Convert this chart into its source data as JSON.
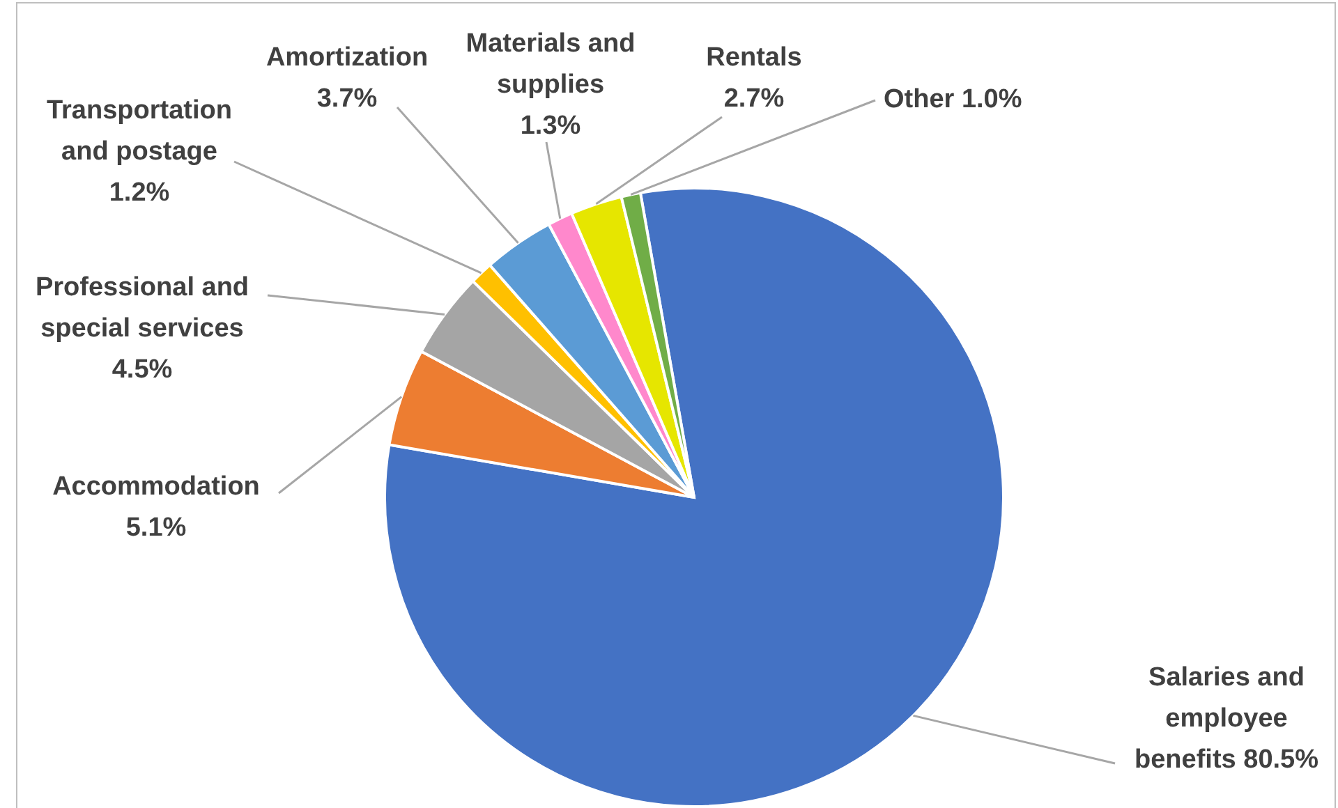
{
  "chart_data": {
    "type": "pie",
    "categories": [
      "Salaries and employee benefits",
      "Accommodation",
      "Professional and special services",
      "Transportation and postage",
      "Amortization",
      "Materials and supplies",
      "Rentals",
      "Other"
    ],
    "values": [
      80.5,
      5.1,
      4.5,
      1.2,
      3.7,
      1.3,
      2.7,
      1.0
    ],
    "value_labels": [
      "80.5%",
      "5.1%",
      "4.5%",
      "1.2%",
      "3.7%",
      "1.3%",
      "2.7%",
      "1.0%"
    ],
    "colors": [
      "#4472c4",
      "#ed7d31",
      "#a5a5a5",
      "#ffc000",
      "#5b9bd5",
      "#ff88cc",
      "#e6e600",
      "#70ad47"
    ]
  }
}
